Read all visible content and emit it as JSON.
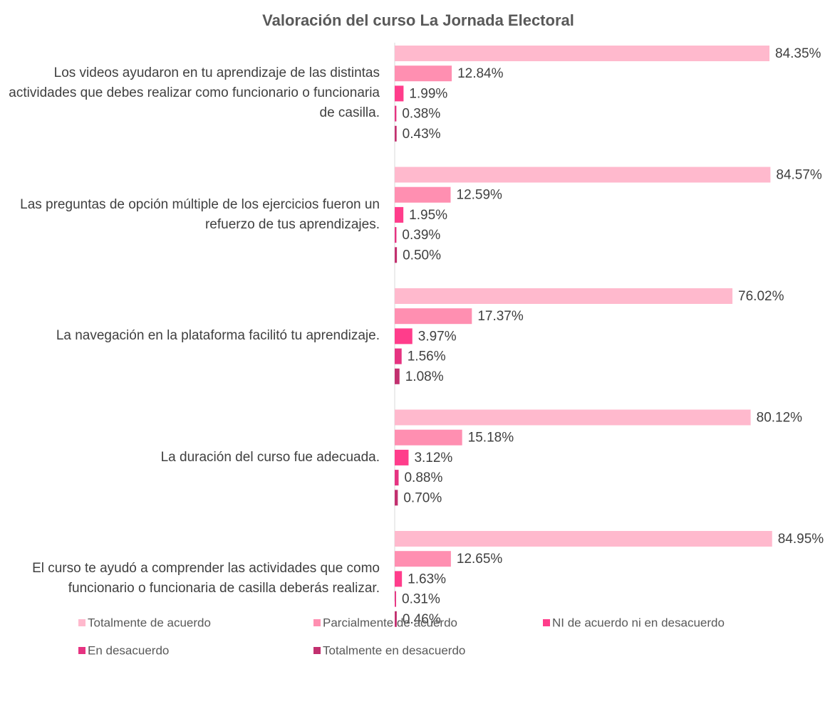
{
  "chart_data": {
    "type": "hbar",
    "title": "Valoración del curso La Jornada Electoral",
    "categories": [
      "Los videos ayudaron en tu aprendizaje de las distintas actividades que debes realizar como funcionario o funcionaria de casilla.",
      "Las preguntas de opción múltiple de los ejercicios fueron un refuerzo de tus aprendizajes.",
      "La navegación en la plataforma facilitó tu aprendizaje.",
      "La duración del curso fue adecuada.",
      "El curso te ayudó a comprender las actividades que como funcionario o funcionaria de casilla deberás realizar."
    ],
    "series": [
      {
        "name": "Totalmente de acuerdo",
        "color": "#ffb9cd",
        "values": [
          84.35,
          84.57,
          76.02,
          80.12,
          84.95
        ],
        "value_labels": [
          "84.35%",
          "84.57%",
          "76.02%",
          "80.12%",
          "84.95%"
        ]
      },
      {
        "name": "Parcialmente de acuerdo",
        "color": "#ff8fb1",
        "values": [
          12.84,
          12.59,
          17.37,
          15.18,
          12.65
        ],
        "value_labels": [
          "12.84%",
          "12.59%",
          "17.37%",
          "15.18%",
          "12.65%"
        ]
      },
      {
        "name": "NI de acuerdo ni en desacuerdo",
        "color": "#ff3d8b",
        "values": [
          1.99,
          1.95,
          3.97,
          3.12,
          1.63
        ],
        "value_labels": [
          "1.99%",
          "1.95%",
          "3.97%",
          "3.12%",
          "1.63%"
        ]
      },
      {
        "name": "En desacuerdo",
        "color": "#e63381",
        "values": [
          0.38,
          0.39,
          1.56,
          0.88,
          0.31
        ],
        "value_labels": [
          "0.38%",
          "0.39%",
          "1.56%",
          "0.88%",
          "0.31%"
        ]
      },
      {
        "name": "Totalmente en desacuerdo",
        "color": "#c2306f",
        "values": [
          0.43,
          0.5,
          1.08,
          0.7,
          0.46
        ],
        "value_labels": [
          "0.43%",
          "0.50%",
          "1.08%",
          "0.70%",
          "0.46%"
        ]
      }
    ],
    "xlim": [
      0,
      100
    ]
  }
}
